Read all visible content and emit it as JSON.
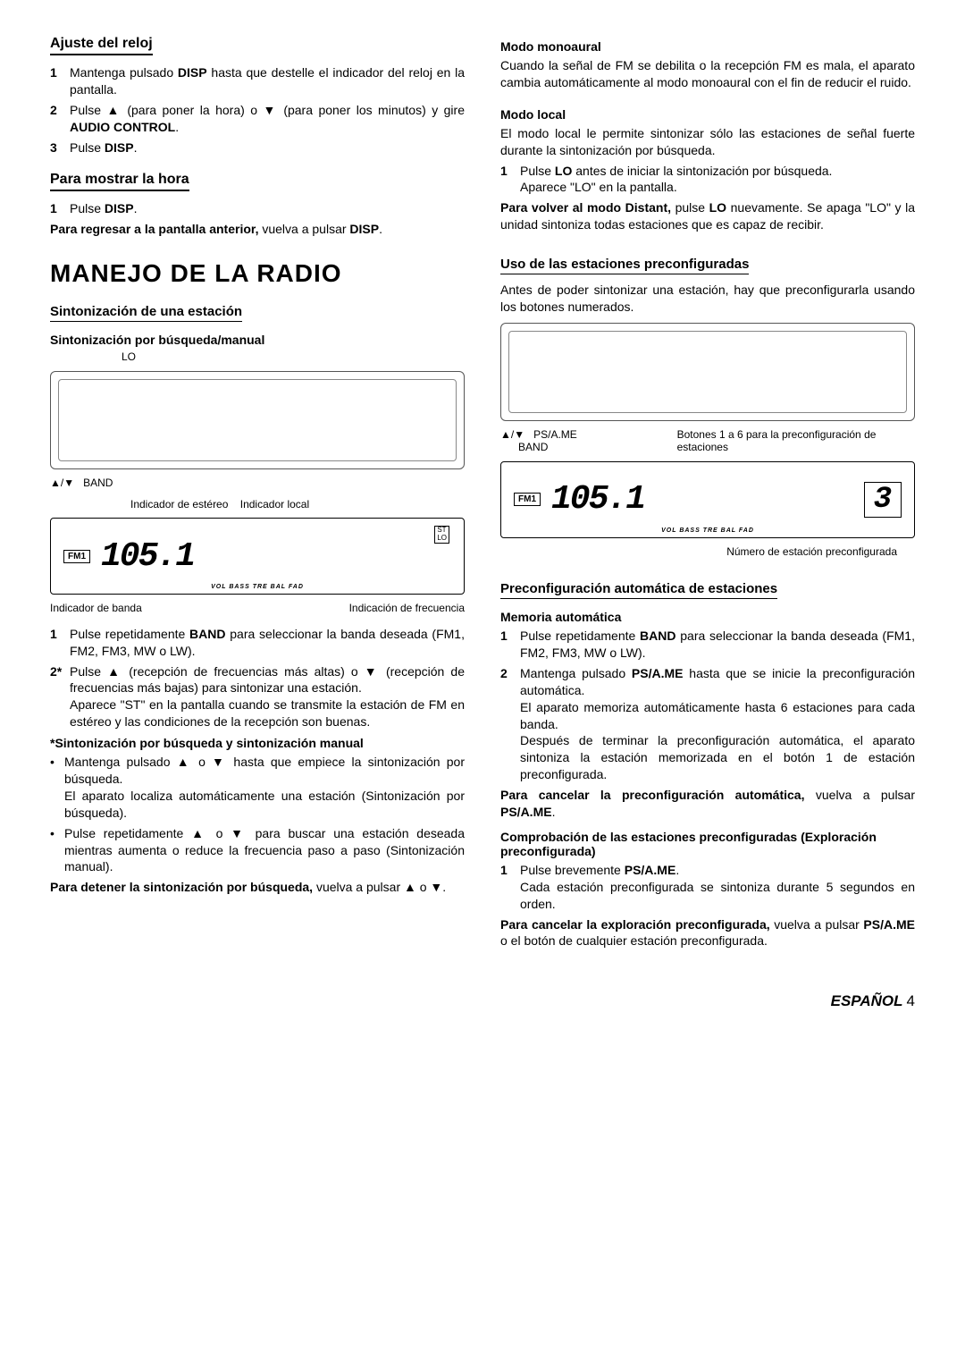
{
  "left": {
    "s1": {
      "h": "Ajuste del reloj",
      "li1n": "1",
      "li1": "Mantenga pulsado <b>DISP</b> hasta que destelle el indicador del reloj en la pantalla.",
      "li2n": "2",
      "li2": "Pulse ▲ (para poner la hora) o ▼ (para poner los minutos) y gire <b>AUDIO CONTROL</b>.",
      "li3n": "3",
      "li3": "Pulse <b>DISP</b>."
    },
    "s2": {
      "h": "Para mostrar la hora",
      "li1n": "1",
      "li1": "Pulse <b>DISP</b>.",
      "p": "<b>Para regresar a la pantalla anterior,</b> vuelva a pulsar <b>DISP</b>."
    },
    "h1": "MANEJO DE LA RADIO",
    "s3": {
      "h": "Sintonización de una estación",
      "sub": "Sintonización por búsqueda/manual",
      "lbl_lo": "LO",
      "lbl_ud": "▲/▼",
      "lbl_band": "BAND",
      "lbl_st": "Indicador de estéreo",
      "lbl_loc": "Indicador local",
      "led_band": "FM1",
      "led_freq": "105.1",
      "led_st": "ST",
      "led_lo": "LO",
      "led_bar": "VOL BASS TRE BAL FAD",
      "lbl_ib": "Indicador de banda",
      "lbl_if": "Indicación de frecuencia",
      "li1n": "1",
      "li1": "Pulse repetidamente <b>BAND</b> para seleccionar la banda deseada (FM1, FM2, FM3, MW o LW).",
      "li2n": "2*",
      "li2": "Pulse ▲ (recepción de frecuencias más altas) o ▼ (recepción de frecuencias más bajas) para sintonizar una estación.",
      "li2b": "Aparece \"ST\" en la pantalla cuando se transmite la estación de FM en estéreo y las condiciones de la recepción son buenas.",
      "sub2": "*Sintonización por búsqueda y sintonización manual",
      "b1": "Mantenga pulsado ▲ o ▼ hasta que empiece la sintonización por búsqueda.",
      "b1b": "El aparato localiza automáticamente una estación (Sintonización por búsqueda).",
      "b2": "Pulse repetidamente ▲ o ▼ para buscar una estación deseada mientras aumenta o reduce la frecuencia paso a paso (Sintonización manual).",
      "p2": "<b>Para detener la sintonización por búsqueda,</b> vuelva a pulsar ▲ o ▼."
    }
  },
  "right": {
    "s4": {
      "sub": "Modo monoaural",
      "p": "Cuando la señal de FM se debilita o la recepción FM es mala, el aparato cambia automáticamente al modo monoaural con el fin de reducir el ruido."
    },
    "s5": {
      "sub": "Modo local",
      "p": "El modo local le permite sintonizar sólo las estaciones de señal fuerte durante la sintonización por búsqueda.",
      "li1n": "1",
      "li1": "Pulse <b>LO</b> antes de iniciar la sintonización por búsqueda.",
      "li1b": "Aparece \"LO\" en la pantalla.",
      "p2": "<b>Para volver al modo Distant,</b> pulse <b>LO</b> nuevamente. Se apaga \"LO\" y la unidad sintoniza todas estaciones que es capaz de recibir."
    },
    "s6": {
      "h": "Uso de las estaciones preconfiguradas",
      "p": "Antes de poder sintonizar una estación, hay que preconfigurarla usando los botones numerados.",
      "lbl_ud": "▲/▼",
      "lbl_ps": "PS/A.ME",
      "lbl_band": "BAND",
      "lbl_btn": "Botones 1 a 6 para la preconfiguración de estaciones",
      "led_band": "FM1",
      "led_freq": "105.1",
      "led_ch": "3",
      "led_bar": "VOL BASS TRE BAL FAD",
      "lbl_num": "Número de estación preconfigurada"
    },
    "s7": {
      "h": "Preconfiguración automática de estaciones",
      "sub": "Memoria automática",
      "li1n": "1",
      "li1": "Pulse repetidamente <b>BAND</b> para seleccionar la banda deseada (FM1, FM2, FM3, MW o LW).",
      "li2n": "2",
      "li2": "Mantenga pulsado <b>PS/A.ME</b> hasta que se inicie la preconfiguración automática.",
      "li2b": "El aparato memoriza automáticamente hasta 6 estaciones para cada banda.",
      "li2c": "Después de terminar la preconfiguración automática, el aparato sintoniza la estación memorizada en el botón 1 de estación preconfigurada.",
      "p": "<b>Para cancelar la preconfiguración automática,</b> vuelva a pulsar <b>PS/A.ME</b>.",
      "sub2": "Comprobación de las estaciones preconfiguradas (Exploración preconfigurada)",
      "li3n": "1",
      "li3": "Pulse brevemente <b>PS/A.ME</b>.",
      "li3b": "Cada estación preconfigurada se sintoniza durante 5 segundos en orden.",
      "p2": "<b>Para cancelar la exploración preconfigurada,</b> vuelva a pulsar <b>PS/A.ME</b> o el botón de cualquier estación preconfigurada."
    }
  },
  "footer": {
    "lang": "ESPAÑOL",
    "pg": "4"
  }
}
